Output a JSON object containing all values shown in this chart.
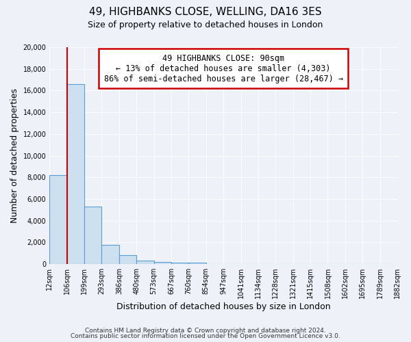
{
  "title": "49, HIGHBANKS CLOSE, WELLING, DA16 3ES",
  "subtitle": "Size of property relative to detached houses in London",
  "xlabel": "Distribution of detached houses by size in London",
  "ylabel": "Number of detached properties",
  "bar_values": [
    8200,
    16600,
    5300,
    1800,
    800,
    300,
    200,
    150,
    100,
    0,
    0,
    0,
    0,
    0,
    0,
    0,
    0,
    0,
    0,
    0
  ],
  "bar_labels": [
    "12sqm",
    "106sqm",
    "199sqm",
    "293sqm",
    "386sqm",
    "480sqm",
    "573sqm",
    "667sqm",
    "760sqm",
    "854sqm",
    "947sqm",
    "1041sqm",
    "1134sqm",
    "1228sqm",
    "1321sqm",
    "1415sqm",
    "1508sqm",
    "1602sqm",
    "1695sqm",
    "1789sqm",
    "1882sqm"
  ],
  "bar_color": "#cce0f0",
  "bar_edge_color": "#5b9bd5",
  "annotation_title": "49 HIGHBANKS CLOSE: 90sqm",
  "annotation_line1": "← 13% of detached houses are smaller (4,303)",
  "annotation_line2": "86% of semi-detached houses are larger (28,467) →",
  "annotation_box_color": "#ffffff",
  "annotation_box_edge": "#cc0000",
  "ylim": [
    0,
    20000
  ],
  "yticks": [
    0,
    2000,
    4000,
    6000,
    8000,
    10000,
    12000,
    14000,
    16000,
    18000,
    20000
  ],
  "footer1": "Contains HM Land Registry data © Crown copyright and database right 2024.",
  "footer2": "Contains public sector information licensed under the Open Government Licence v3.0.",
  "background_color": "#eef2f8",
  "grid_color": "#ffffff",
  "title_fontsize": 11,
  "subtitle_fontsize": 9,
  "axis_label_fontsize": 9,
  "tick_fontsize": 7
}
